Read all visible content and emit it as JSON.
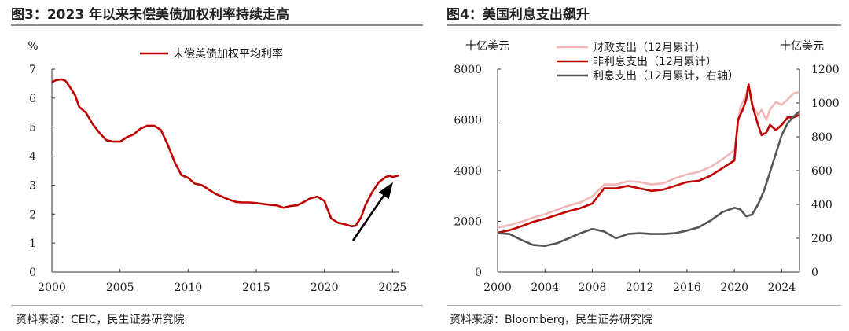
{
  "left": {
    "title": "图3：2023 年以来未偿美债加权利率持续走高",
    "source": "资料来源：CEIC，民生证券研究院"
  },
  "right": {
    "title": "图4：美国利息支出飙升",
    "source": "资料来源：Bloomberg，民生证券研究院"
  },
  "chart_data": [
    {
      "type": "line",
      "ylabel": "%",
      "xlim": [
        2000,
        2025.5
      ],
      "ylim": [
        0,
        7
      ],
      "xticks": [
        2000,
        2005,
        2010,
        2015,
        2020,
        2025
      ],
      "yticks": [
        0,
        1,
        2,
        3,
        4,
        5,
        6,
        7
      ],
      "legend_position": "top",
      "grid": false,
      "series": [
        {
          "name": "未偿美债加权平均利率",
          "color": "#c00000",
          "points": [
            [
              2000.0,
              6.55
            ],
            [
              2000.3,
              6.62
            ],
            [
              2000.7,
              6.65
            ],
            [
              2001.0,
              6.6
            ],
            [
              2001.3,
              6.4
            ],
            [
              2001.7,
              6.1
            ],
            [
              2002.0,
              5.7
            ],
            [
              2002.5,
              5.5
            ],
            [
              2003.0,
              5.1
            ],
            [
              2003.5,
              4.8
            ],
            [
              2004.0,
              4.55
            ],
            [
              2004.5,
              4.5
            ],
            [
              2005.0,
              4.5
            ],
            [
              2005.5,
              4.65
            ],
            [
              2006.0,
              4.75
            ],
            [
              2006.5,
              4.95
            ],
            [
              2007.0,
              5.05
            ],
            [
              2007.5,
              5.05
            ],
            [
              2008.0,
              4.9
            ],
            [
              2008.5,
              4.4
            ],
            [
              2009.0,
              3.8
            ],
            [
              2009.5,
              3.35
            ],
            [
              2010.0,
              3.25
            ],
            [
              2010.5,
              3.05
            ],
            [
              2011.0,
              3.0
            ],
            [
              2011.5,
              2.85
            ],
            [
              2012.0,
              2.7
            ],
            [
              2012.5,
              2.6
            ],
            [
              2013.0,
              2.5
            ],
            [
              2013.5,
              2.42
            ],
            [
              2014.0,
              2.4
            ],
            [
              2014.5,
              2.4
            ],
            [
              2015.0,
              2.38
            ],
            [
              2015.5,
              2.35
            ],
            [
              2016.0,
              2.32
            ],
            [
              2016.5,
              2.3
            ],
            [
              2017.0,
              2.22
            ],
            [
              2017.5,
              2.28
            ],
            [
              2018.0,
              2.3
            ],
            [
              2018.5,
              2.42
            ],
            [
              2019.0,
              2.55
            ],
            [
              2019.5,
              2.6
            ],
            [
              2020.0,
              2.45
            ],
            [
              2020.2,
              2.2
            ],
            [
              2020.5,
              1.85
            ],
            [
              2021.0,
              1.7
            ],
            [
              2021.5,
              1.65
            ],
            [
              2022.0,
              1.58
            ],
            [
              2022.3,
              1.6
            ],
            [
              2022.7,
              1.9
            ],
            [
              2023.0,
              2.3
            ],
            [
              2023.5,
              2.75
            ],
            [
              2024.0,
              3.1
            ],
            [
              2024.5,
              3.28
            ],
            [
              2024.8,
              3.32
            ],
            [
              2025.0,
              3.28
            ],
            [
              2025.5,
              3.34
            ]
          ]
        }
      ],
      "annotation": "arrow-up-right"
    },
    {
      "type": "line",
      "ylabel": "十亿美元",
      "y2label": "十亿美元",
      "xlim": [
        2000,
        2025.5
      ],
      "ylim": [
        0,
        8000
      ],
      "y2lim": [
        0,
        1200
      ],
      "xticks": [
        2000,
        2004,
        2008,
        2012,
        2016,
        2020,
        2024
      ],
      "yticks": [
        0,
        2000,
        4000,
        6000,
        8000
      ],
      "y2ticks": [
        0,
        200,
        400,
        600,
        800,
        1000,
        1200
      ],
      "legend_position": "top",
      "grid": false,
      "series": [
        {
          "name": "财政支出（12月累计）",
          "color": "#f2b8b8",
          "axis": "left",
          "points": [
            [
              2000,
              1750
            ],
            [
              2001,
              1850
            ],
            [
              2002,
              1980
            ],
            [
              2003,
              2150
            ],
            [
              2004,
              2280
            ],
            [
              2005,
              2450
            ],
            [
              2006,
              2620
            ],
            [
              2007,
              2750
            ],
            [
              2008,
              2980
            ],
            [
              2009,
              3450
            ],
            [
              2010,
              3450
            ],
            [
              2011,
              3580
            ],
            [
              2012,
              3550
            ],
            [
              2013,
              3450
            ],
            [
              2014,
              3500
            ],
            [
              2015,
              3700
            ],
            [
              2016,
              3850
            ],
            [
              2017,
              3950
            ],
            [
              2018,
              4150
            ],
            [
              2019,
              4450
            ],
            [
              2020,
              4800
            ],
            [
              2020.5,
              6500
            ],
            [
              2021,
              7000
            ],
            [
              2021.2,
              7400
            ],
            [
              2021.6,
              6500
            ],
            [
              2022,
              6200
            ],
            [
              2022.3,
              6400
            ],
            [
              2022.7,
              6000
            ],
            [
              2023,
              6400
            ],
            [
              2023.5,
              6700
            ],
            [
              2024,
              6600
            ],
            [
              2024.5,
              6800
            ],
            [
              2025,
              7050
            ],
            [
              2025.5,
              7100
            ]
          ]
        },
        {
          "name": "非利息支出（12月累计）",
          "color": "#c00000",
          "axis": "left",
          "points": [
            [
              2000,
              1550
            ],
            [
              2001,
              1650
            ],
            [
              2002,
              1800
            ],
            [
              2003,
              1980
            ],
            [
              2004,
              2100
            ],
            [
              2005,
              2250
            ],
            [
              2006,
              2400
            ],
            [
              2007,
              2520
            ],
            [
              2008,
              2700
            ],
            [
              2009,
              3300
            ],
            [
              2010,
              3300
            ],
            [
              2011,
              3400
            ],
            [
              2012,
              3300
            ],
            [
              2013,
              3200
            ],
            [
              2014,
              3250
            ],
            [
              2015,
              3400
            ],
            [
              2016,
              3550
            ],
            [
              2017,
              3600
            ],
            [
              2018,
              3800
            ],
            [
              2019,
              4100
            ],
            [
              2020,
              4400
            ],
            [
              2020.3,
              6000
            ],
            [
              2020.7,
              6400
            ],
            [
              2021,
              6800
            ],
            [
              2021.2,
              7400
            ],
            [
              2021.5,
              6600
            ],
            [
              2022,
              5800
            ],
            [
              2022.3,
              5400
            ],
            [
              2022.7,
              5500
            ],
            [
              2023,
              5800
            ],
            [
              2023.5,
              5600
            ],
            [
              2024,
              5800
            ],
            [
              2024.5,
              6100
            ],
            [
              2025,
              6100
            ],
            [
              2025.5,
              6200
            ]
          ]
        },
        {
          "name": "利息支出（12月累计，右轴）",
          "color": "#555555",
          "axis": "right",
          "points": [
            [
              2000,
              230
            ],
            [
              2001,
              225
            ],
            [
              2002,
              190
            ],
            [
              2003,
              160
            ],
            [
              2004,
              155
            ],
            [
              2005,
              170
            ],
            [
              2006,
              200
            ],
            [
              2007,
              230
            ],
            [
              2008,
              255
            ],
            [
              2009,
              240
            ],
            [
              2010,
              200
            ],
            [
              2011,
              225
            ],
            [
              2012,
              230
            ],
            [
              2013,
              225
            ],
            [
              2014,
              225
            ],
            [
              2015,
              230
            ],
            [
              2016,
              245
            ],
            [
              2017,
              265
            ],
            [
              2018,
              305
            ],
            [
              2019,
              355
            ],
            [
              2020,
              380
            ],
            [
              2020.5,
              370
            ],
            [
              2021,
              330
            ],
            [
              2021.5,
              340
            ],
            [
              2022,
              400
            ],
            [
              2022.5,
              480
            ],
            [
              2023,
              590
            ],
            [
              2023.5,
              700
            ],
            [
              2024,
              810
            ],
            [
              2024.5,
              880
            ],
            [
              2025,
              920
            ],
            [
              2025.5,
              950
            ]
          ]
        }
      ]
    }
  ]
}
